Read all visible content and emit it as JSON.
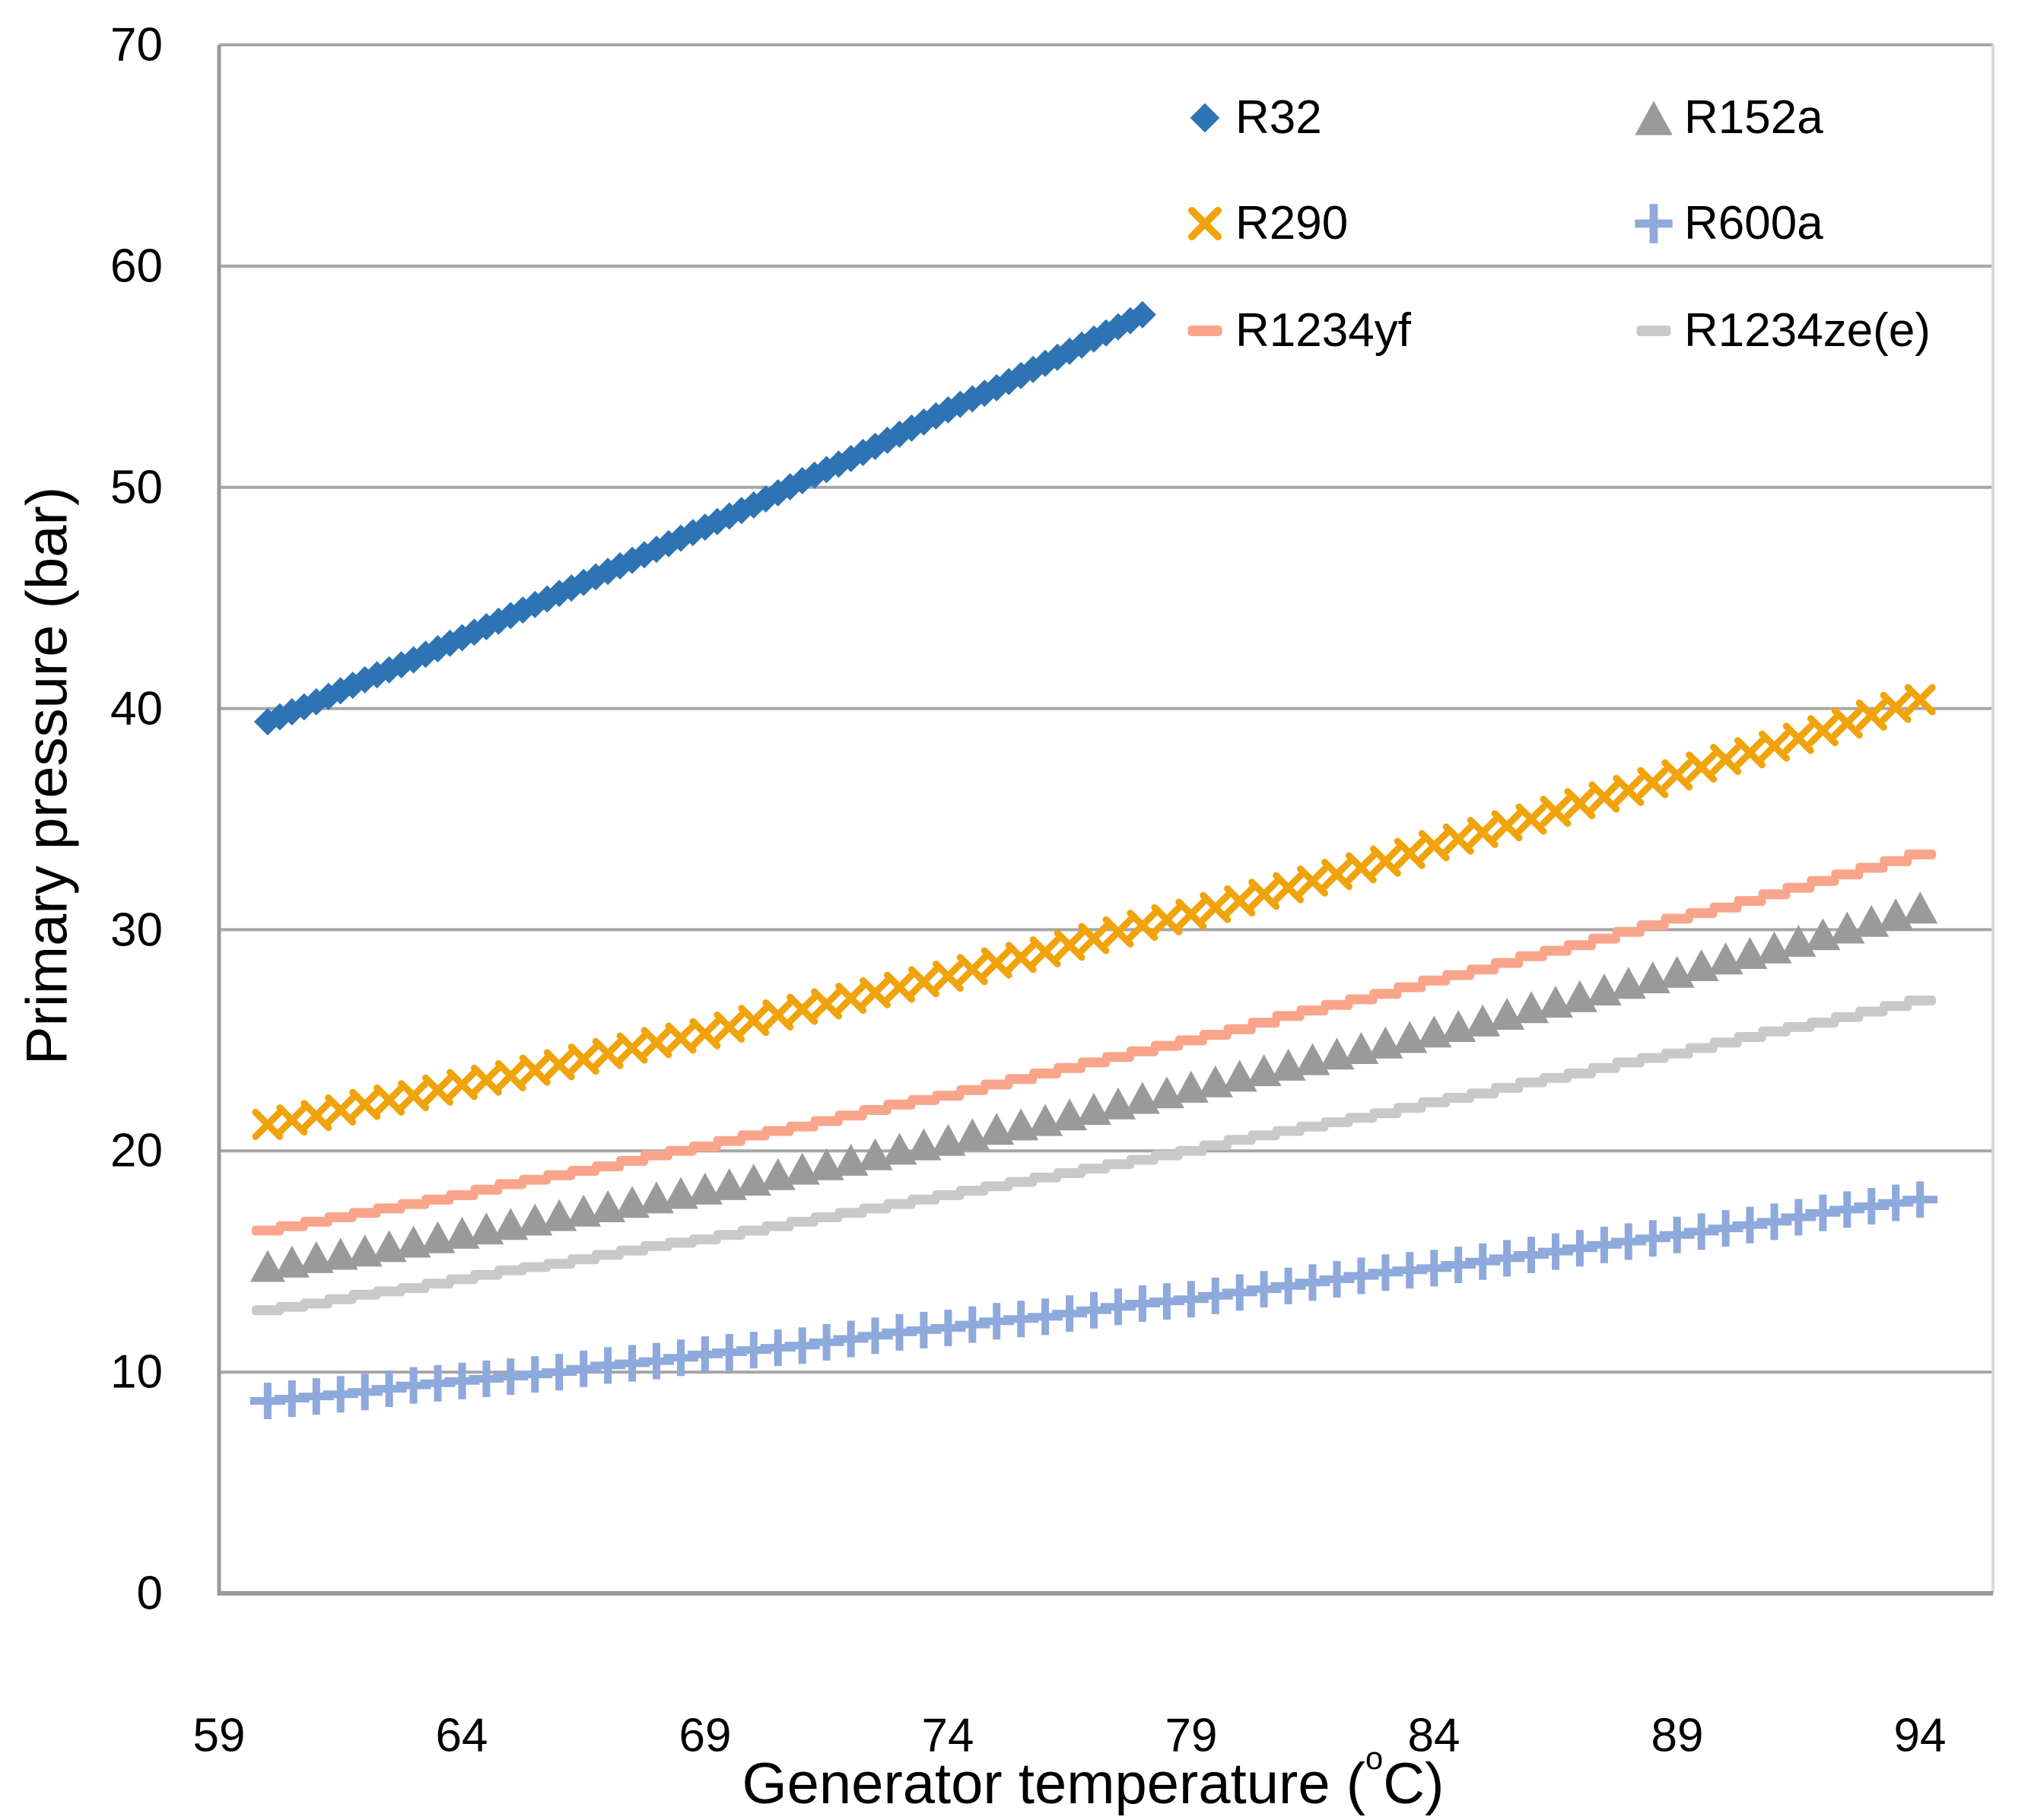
{
  "figure": {
    "y_axis_title": "Primary pressure (bar)",
    "x_axis_title_prefix": "Generator temperature (",
    "x_axis_title_sup": "o",
    "x_axis_title_suffix": "C)",
    "y_tick_labels": [
      "0",
      "10",
      "20",
      "30",
      "40",
      "50",
      "60",
      "70"
    ],
    "x_tick_labels": [
      "59",
      "64",
      "69",
      "74",
      "79",
      "84",
      "89",
      "94"
    ]
  },
  "chart_data": {
    "type": "scatter",
    "title": "",
    "xlabel": "Generator temperature (°C)",
    "ylabel": "Primary pressure (bar)",
    "xlim": [
      59,
      95.5
    ],
    "ylim": [
      0,
      70
    ],
    "x_tick_values": [
      59,
      64,
      69,
      74,
      79,
      84,
      89,
      94
    ],
    "y_tick_values": [
      0,
      10,
      20,
      30,
      40,
      50,
      60,
      70
    ],
    "grid": "horizontal",
    "grid_color": "#A6A6A6",
    "axis_color": "#9A9A9A",
    "plot_border_right_color": "#D9D9D9",
    "legend_position": "inside-top-right-two-columns",
    "series": [
      {
        "name": "R32",
        "marker": "diamond",
        "color": "#2E74B5",
        "temp_c_start": 60,
        "temp_c_end": 78,
        "temp_c_step": 1,
        "marker_step_c": 0.25,
        "pressures_bar": [
          39.4,
          40.3,
          41.3,
          42.2,
          43.2,
          44.2,
          45.2,
          46.2,
          47.2,
          48.2,
          49.2,
          50.3,
          51.3,
          52.4,
          53.5,
          54.5,
          55.6,
          56.7,
          57.8
        ]
      },
      {
        "name": "R152a",
        "marker": "triangle",
        "color": "#9A9A9A",
        "temp_c_start": 60,
        "temp_c_end": 94,
        "temp_c_step": 1,
        "marker_step_c": 0.5,
        "pressures_bar": [
          14.8,
          15.2,
          15.5,
          15.9,
          16.3,
          16.7,
          17.1,
          17.5,
          17.9,
          18.3,
          18.7,
          19.2,
          19.6,
          20.1,
          20.5,
          21.0,
          21.4,
          21.9,
          22.4,
          22.9,
          23.4,
          23.9,
          24.4,
          24.9,
          25.4,
          25.9,
          26.5,
          27.0,
          27.6,
          28.1,
          28.7,
          29.2,
          29.8,
          30.4,
          31.0
        ]
      },
      {
        "name": "R290",
        "marker": "x",
        "color": "#F0A30A",
        "temp_c_start": 60,
        "temp_c_end": 94,
        "temp_c_step": 1,
        "marker_step_c": 0.5,
        "pressures_bar": [
          21.2,
          21.6,
          22.1,
          22.5,
          23.0,
          23.4,
          23.9,
          24.4,
          24.9,
          25.3,
          25.9,
          26.4,
          26.9,
          27.4,
          27.9,
          28.5,
          29.0,
          29.6,
          30.2,
          30.7,
          31.3,
          31.9,
          32.5,
          33.1,
          33.8,
          34.4,
          35.0,
          35.7,
          36.3,
          37.0,
          37.7,
          38.3,
          39.0,
          39.7,
          40.4
        ]
      },
      {
        "name": "R600a",
        "marker": "plus",
        "color": "#8EA9DB",
        "temp_c_start": 60,
        "temp_c_end": 94,
        "temp_c_step": 1,
        "marker_step_c": 0.5,
        "pressures_bar": [
          8.7,
          8.9,
          9.1,
          9.4,
          9.6,
          9.8,
          10.0,
          10.3,
          10.5,
          10.8,
          11.0,
          11.2,
          11.5,
          11.8,
          12.0,
          12.3,
          12.5,
          12.8,
          13.1,
          13.3,
          13.6,
          13.9,
          14.2,
          14.5,
          14.7,
          15.0,
          15.3,
          15.6,
          15.9,
          16.2,
          16.5,
          16.8,
          17.2,
          17.5,
          17.8
        ]
      },
      {
        "name": "R1234yf",
        "marker": "dash",
        "color": "#F9A58B",
        "temp_c_start": 60,
        "temp_c_end": 94,
        "temp_c_step": 1,
        "marker_step_c": 0.5,
        "pressures_bar": [
          16.4,
          16.8,
          17.2,
          17.6,
          18.0,
          18.5,
          18.9,
          19.3,
          19.8,
          20.2,
          20.7,
          21.1,
          21.6,
          22.1,
          22.5,
          23.0,
          23.5,
          24.0,
          24.5,
          25.0,
          25.5,
          26.1,
          26.6,
          27.1,
          27.7,
          28.2,
          28.8,
          29.3,
          29.9,
          30.5,
          31.0,
          31.6,
          32.2,
          32.8,
          33.4
        ]
      },
      {
        "name": "R1234ze(e)",
        "marker": "dash",
        "color": "#C9C9C9",
        "temp_c_start": 60,
        "temp_c_end": 94,
        "temp_c_step": 1,
        "marker_step_c": 0.5,
        "pressures_bar": [
          12.8,
          13.1,
          13.5,
          13.8,
          14.2,
          14.6,
          14.9,
          15.3,
          15.7,
          16.0,
          16.4,
          16.8,
          17.2,
          17.6,
          18.0,
          18.4,
          18.8,
          19.2,
          19.6,
          20.0,
          20.5,
          20.9,
          21.3,
          21.7,
          22.2,
          22.6,
          23.1,
          23.5,
          24.0,
          24.4,
          24.9,
          25.4,
          25.8,
          26.3,
          26.8
        ]
      }
    ]
  }
}
